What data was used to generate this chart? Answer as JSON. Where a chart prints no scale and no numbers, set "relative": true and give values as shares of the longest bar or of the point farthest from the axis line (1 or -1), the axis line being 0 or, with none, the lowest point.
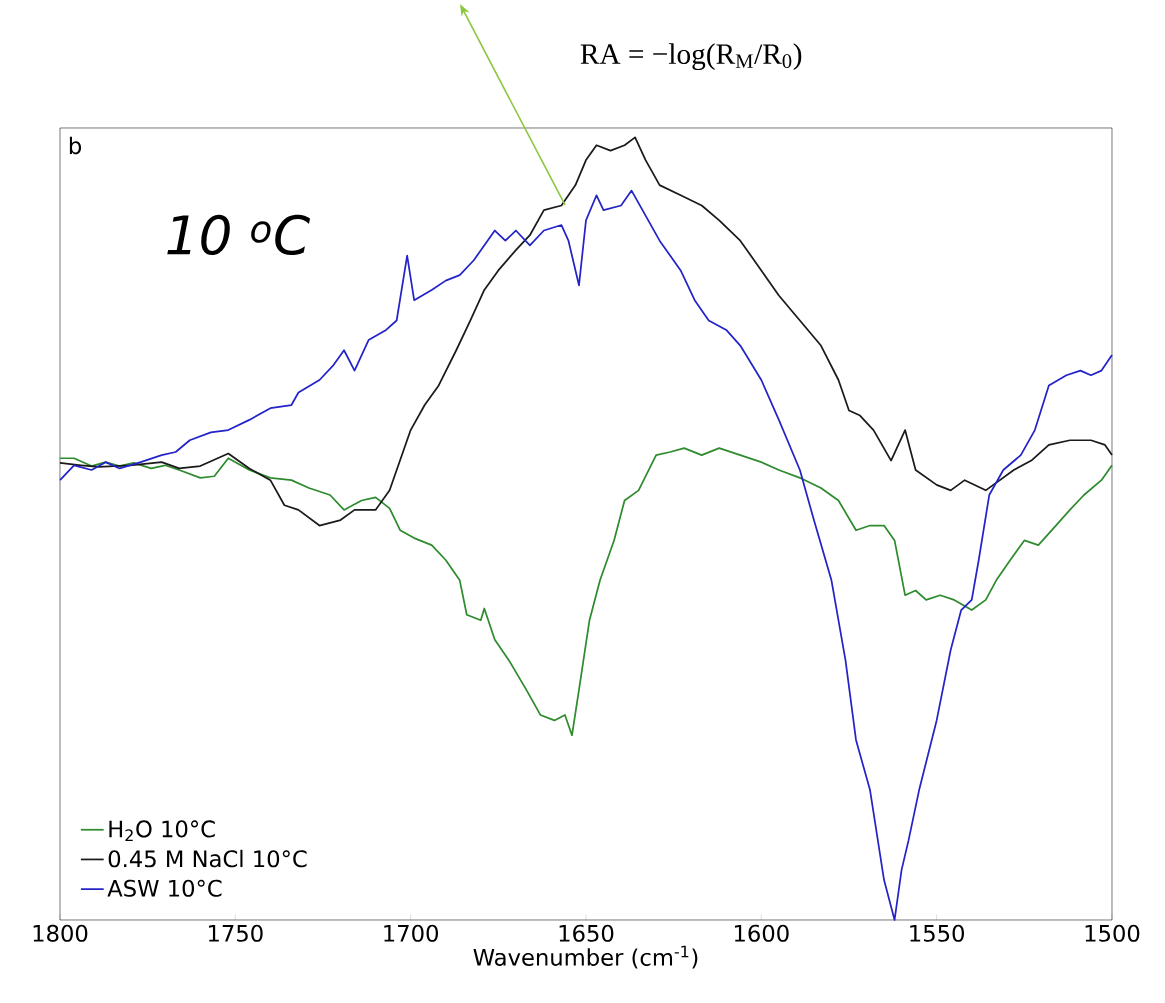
{
  "chart_data": {
    "type": "line",
    "relative": true,
    "xlabel": "Wavenumber (cm$^{-1}$)",
    "xlim": [
      1800,
      1500
    ],
    "xticks": [
      1800,
      1750,
      1700,
      1650,
      1600,
      1550,
      1500
    ],
    "legend": "bottom left",
    "annotations": [
      "b",
      "*10 $^{o}$C*",
      "RA = −log(R$_{M}$/R$_{0}$)"
    ],
    "series": [
      {
        "name": "H$_{2}$O 10°C",
        "color": "#2e8b2e",
        "x": [
          1800,
          1796,
          1791,
          1787,
          1783,
          1779,
          1774,
          1770,
          1766,
          1760,
          1756,
          1752,
          1746,
          1740,
          1734,
          1729,
          1723,
          1719,
          1714,
          1710,
          1706,
          1703,
          1699,
          1694,
          1690,
          1686,
          1684,
          1680,
          1679,
          1676,
          1672,
          1667,
          1663,
          1659,
          1656,
          1654,
          1652,
          1649,
          1646,
          1642,
          1639,
          1635,
          1630,
          1626,
          1622,
          1617,
          1612,
          1606,
          1600,
          1595,
          1589,
          1583,
          1578,
          1573,
          1569,
          1565,
          1562,
          1559,
          1556,
          1553,
          1549,
          1545,
          1540,
          1536,
          1533,
          1529,
          1525,
          1521,
          1516,
          1512,
          1508,
          1503,
          1500
        ],
        "values": [
          0.59,
          0.59,
          0.58,
          0.585,
          0.58,
          0.584,
          0.577,
          0.581,
          0.575,
          0.565,
          0.567,
          0.59,
          0.575,
          0.565,
          0.562,
          0.552,
          0.543,
          0.524,
          0.536,
          0.54,
          0.526,
          0.498,
          0.488,
          0.479,
          0.46,
          0.434,
          0.39,
          0.383,
          0.398,
          0.358,
          0.332,
          0.294,
          0.262,
          0.255,
          0.262,
          0.236,
          0.294,
          0.383,
          0.434,
          0.485,
          0.536,
          0.549,
          0.594,
          0.598,
          0.603,
          0.594,
          0.603,
          0.594,
          0.585,
          0.575,
          0.565,
          0.552,
          0.536,
          0.498,
          0.504,
          0.504,
          0.485,
          0.415,
          0.421,
          0.409,
          0.415,
          0.409,
          0.396,
          0.409,
          0.434,
          0.46,
          0.485,
          0.479,
          0.504,
          0.524,
          0.543,
          0.562,
          0.581
        ]
      },
      {
        "name": "0.45 M NaCl 10°C",
        "color": "#1a1a1a",
        "x": [
          1800,
          1794,
          1789,
          1780,
          1771,
          1766,
          1760,
          1752,
          1746,
          1740,
          1736,
          1732,
          1726,
          1720,
          1716,
          1710,
          1706,
          1700,
          1696,
          1692,
          1687,
          1683,
          1679,
          1675,
          1670,
          1666,
          1662,
          1657,
          1653,
          1650,
          1647,
          1643,
          1639,
          1636,
          1633,
          1629,
          1623,
          1617,
          1612,
          1606,
          1600,
          1595,
          1589,
          1583,
          1578,
          1575,
          1572,
          1568,
          1563,
          1559,
          1556,
          1550,
          1546,
          1542,
          1536,
          1532,
          1528,
          1523,
          1518,
          1512,
          1506,
          1502,
          1500
        ],
        "values": [
          0.584,
          0.581,
          0.579,
          0.581,
          0.585,
          0.577,
          0.58,
          0.596,
          0.577,
          0.562,
          0.53,
          0.524,
          0.504,
          0.511,
          0.524,
          0.524,
          0.549,
          0.626,
          0.658,
          0.683,
          0.728,
          0.766,
          0.805,
          0.83,
          0.856,
          0.875,
          0.907,
          0.913,
          0.939,
          0.971,
          0.99,
          0.983,
          0.99,
          1,
          0.971,
          0.939,
          0.926,
          0.913,
          0.894,
          0.868,
          0.83,
          0.798,
          0.766,
          0.734,
          0.69,
          0.651,
          0.645,
          0.626,
          0.587,
          0.626,
          0.575,
          0.556,
          0.549,
          0.562,
          0.549,
          0.562,
          0.575,
          0.587,
          0.607,
          0.613,
          0.613,
          0.607,
          0.594
        ]
      },
      {
        "name": "ASW 10°C",
        "color": "#2323c8",
        "x": [
          1800,
          1796,
          1791,
          1787,
          1783,
          1777,
          1771,
          1767,
          1763,
          1757,
          1752,
          1746,
          1740,
          1734,
          1732,
          1726,
          1722,
          1719,
          1716,
          1712,
          1707,
          1704,
          1701,
          1699,
          1694,
          1690,
          1686,
          1682,
          1676,
          1673,
          1670,
          1666,
          1662,
          1657,
          1655,
          1652,
          1650,
          1647,
          1645,
          1640,
          1637,
          1633,
          1629,
          1623,
          1619,
          1615,
          1610,
          1606,
          1600,
          1595,
          1589,
          1585,
          1580,
          1576,
          1573,
          1569,
          1565,
          1562,
          1560,
          1558,
          1555,
          1550,
          1546,
          1543,
          1540,
          1538,
          1535,
          1531,
          1526,
          1522,
          1518,
          1513,
          1509,
          1506,
          1503,
          1500
        ],
        "values": [
          0.562,
          0.581,
          0.575,
          0.585,
          0.577,
          0.585,
          0.594,
          0.598,
          0.613,
          0.623,
          0.626,
          0.639,
          0.654,
          0.658,
          0.674,
          0.69,
          0.709,
          0.728,
          0.702,
          0.741,
          0.754,
          0.766,
          0.849,
          0.792,
          0.805,
          0.817,
          0.824,
          0.843,
          0.881,
          0.868,
          0.881,
          0.862,
          0.881,
          0.888,
          0.868,
          0.811,
          0.894,
          0.926,
          0.907,
          0.913,
          0.932,
          0.9,
          0.868,
          0.83,
          0.792,
          0.766,
          0.754,
          0.734,
          0.69,
          0.639,
          0.575,
          0.511,
          0.434,
          0.332,
          0.23,
          0.166,
          0.051,
          0,
          0.064,
          0.102,
          0.166,
          0.255,
          0.345,
          0.396,
          0.409,
          0.46,
          0.543,
          0.575,
          0.594,
          0.626,
          0.683,
          0.696,
          0.702,
          0.696,
          0.702,
          0.722
        ]
      }
    ]
  }
}
